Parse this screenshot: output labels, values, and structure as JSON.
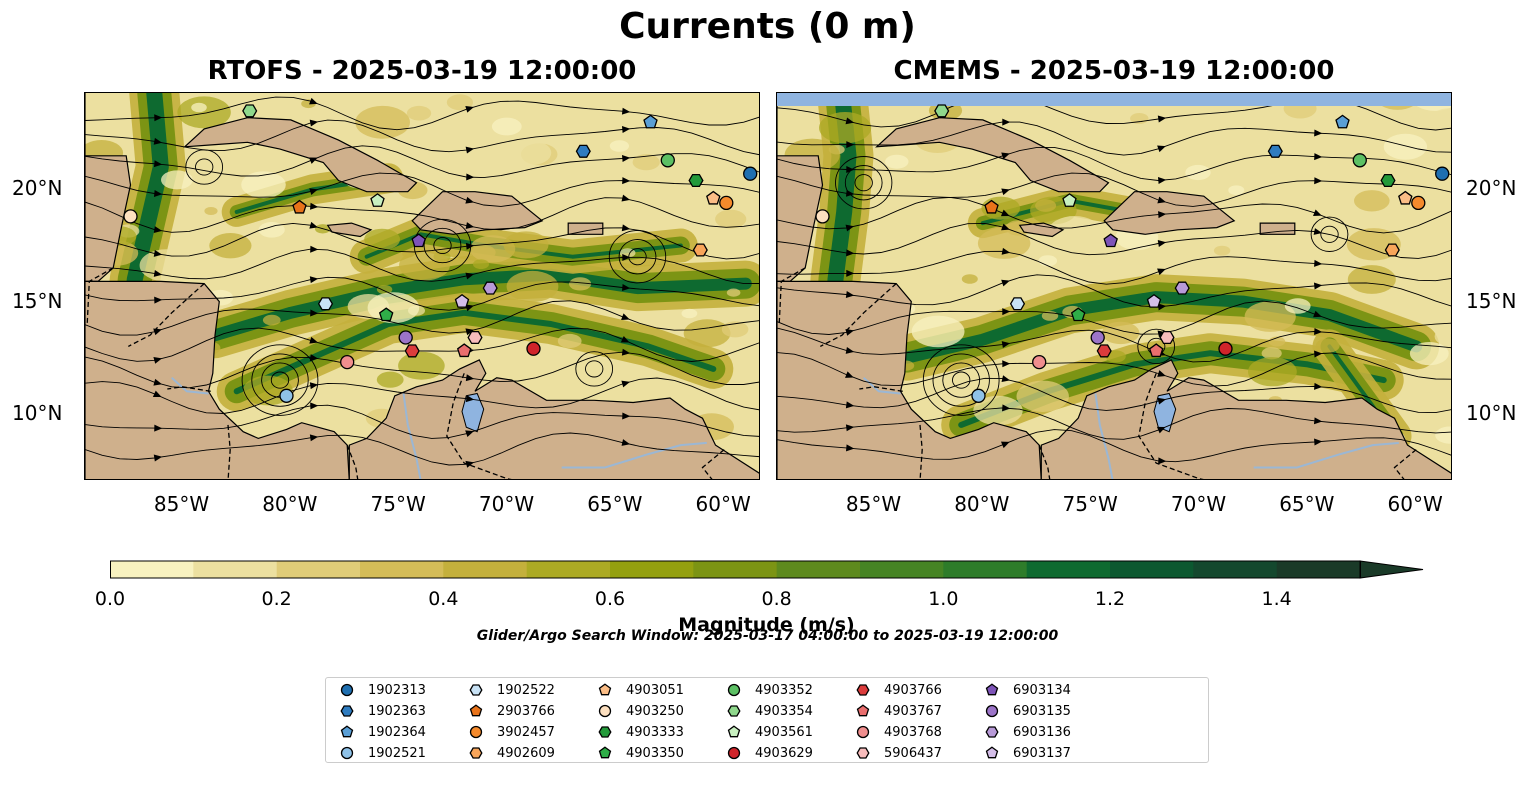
{
  "figure": {
    "suptitle": "Currents (0 m)",
    "left_title": "RTOFS - 2025-03-19 12:00:00",
    "right_title": "CMEMS - 2025-03-19 12:00:00",
    "search_window": "Glider/Argo Search Window: 2025-03-17 04:00:00 to 2025-03-19 12:00:00"
  },
  "axes": {
    "x_ticks": [
      "85°W",
      "80°W",
      "75°W",
      "70°W",
      "65°W",
      "60°W"
    ],
    "y_ticks": [
      "20°N",
      "15°N",
      "10°N"
    ],
    "x_values": [
      -85,
      -80,
      -75,
      -70,
      -65,
      -60
    ],
    "y_values": [
      20,
      15,
      10
    ],
    "lon_range": [
      -89.5,
      -58.3
    ],
    "lat_range": [
      7.0,
      24.3
    ]
  },
  "colorbar": {
    "label": "Magnitude (m/s)",
    "ticks": [
      "0.0",
      "0.2",
      "0.4",
      "0.6",
      "0.8",
      "1.0",
      "1.2",
      "1.4"
    ],
    "tick_values": [
      0.0,
      0.2,
      0.4,
      0.6,
      0.8,
      1.0,
      1.2,
      1.4
    ],
    "range": [
      0,
      1.5
    ],
    "extend": "max",
    "colors": [
      "#f8f2c0",
      "#ece0a0",
      "#e0cc78",
      "#d4bc58",
      "#c4b03c",
      "#acaa24",
      "#94a010",
      "#7c9414",
      "#5e8a1e",
      "#468424",
      "#2e7c2a",
      "#0e6a30",
      "#0c5830",
      "#14482e",
      "#1a3a28"
    ]
  },
  "colors": {
    "land": "#cfb08c",
    "lake": "#8fb4e0",
    "river": "#9bb7d4"
  },
  "legend": [
    {
      "label": "1902313",
      "shape": "circle",
      "color": "#1f6fb0"
    },
    {
      "label": "1902363",
      "shape": "hexagon",
      "color": "#2f7cc0"
    },
    {
      "label": "1902364",
      "shape": "pentagon",
      "color": "#5a9fd6"
    },
    {
      "label": "1902521",
      "shape": "circle",
      "color": "#8fc2e8"
    },
    {
      "label": "1902522",
      "shape": "hexagon",
      "color": "#c8e2f5"
    },
    {
      "label": "2903766",
      "shape": "pentagon",
      "color": "#e8731a"
    },
    {
      "label": "3902457",
      "shape": "circle",
      "color": "#f58a2c"
    },
    {
      "label": "4902609",
      "shape": "hexagon",
      "color": "#f8a55a"
    },
    {
      "label": "4903051",
      "shape": "pentagon",
      "color": "#fbbd86"
    },
    {
      "label": "4903250",
      "shape": "circle",
      "color": "#fde0c0"
    },
    {
      "label": "4903333",
      "shape": "hexagon",
      "color": "#239a3a"
    },
    {
      "label": "4903350",
      "shape": "pentagon",
      "color": "#2fae48"
    },
    {
      "label": "4903352",
      "shape": "circle",
      "color": "#5cc064"
    },
    {
      "label": "4903354",
      "shape": "hexagon",
      "color": "#8fd88c"
    },
    {
      "label": "4903561",
      "shape": "pentagon",
      "color": "#c8f0c0"
    },
    {
      "label": "4903629",
      "shape": "circle",
      "color": "#d0242a"
    },
    {
      "label": "4903766",
      "shape": "hexagon",
      "color": "#dc3c3c"
    },
    {
      "label": "4903767",
      "shape": "pentagon",
      "color": "#ea6e6e"
    },
    {
      "label": "4903768",
      "shape": "circle",
      "color": "#f08e8e"
    },
    {
      "label": "5906437",
      "shape": "hexagon",
      "color": "#f8bcbc"
    },
    {
      "label": "6903134",
      "shape": "pentagon",
      "color": "#7e54b8"
    },
    {
      "label": "6903135",
      "shape": "circle",
      "color": "#9c74c8"
    },
    {
      "label": "6903136",
      "shape": "hexagon",
      "color": "#b89ad8"
    },
    {
      "label": "6903137",
      "shape": "pentagon",
      "color": "#d4bee8"
    }
  ],
  "platforms": [
    {
      "id": "1902313",
      "lon": -58.8,
      "lat": 20.7
    },
    {
      "id": "1902363",
      "lon": -66.5,
      "lat": 21.7
    },
    {
      "id": "1902364",
      "lon": -63.4,
      "lat": 23.0
    },
    {
      "id": "1902521",
      "lon": -80.2,
      "lat": 10.8
    },
    {
      "id": "1902522",
      "lon": -78.4,
      "lat": 14.9
    },
    {
      "id": "2903766",
      "lon": -79.6,
      "lat": 19.2
    },
    {
      "id": "3902457",
      "lon": -59.9,
      "lat": 19.4
    },
    {
      "id": "4902609",
      "lon": -61.1,
      "lat": 17.3
    },
    {
      "id": "4903051",
      "lon": -60.5,
      "lat": 19.6
    },
    {
      "id": "4903250",
      "lon": -87.4,
      "lat": 18.8
    },
    {
      "id": "4903333",
      "lon": -61.3,
      "lat": 20.4
    },
    {
      "id": "4903350",
      "lon": -75.6,
      "lat": 14.4
    },
    {
      "id": "4903352",
      "lon": -62.6,
      "lat": 21.3
    },
    {
      "id": "4903354",
      "lon": -81.9,
      "lat": 23.5
    },
    {
      "id": "4903561",
      "lon": -76.0,
      "lat": 19.5
    },
    {
      "id": "4903629",
      "lon": -68.8,
      "lat": 12.9
    },
    {
      "id": "4903766",
      "lon": -74.4,
      "lat": 12.8
    },
    {
      "id": "4903767",
      "lon": -72.0,
      "lat": 12.8
    },
    {
      "id": "4903768",
      "lon": -77.4,
      "lat": 12.3
    },
    {
      "id": "5906437",
      "lon": -71.5,
      "lat": 13.4
    },
    {
      "id": "6903134",
      "lon": -74.1,
      "lat": 17.7
    },
    {
      "id": "6903135",
      "lon": -74.7,
      "lat": 13.4
    },
    {
      "id": "6903136",
      "lon": -70.8,
      "lat": 15.6
    },
    {
      "id": "6903137",
      "lon": -72.1,
      "lat": 15.0
    }
  ]
}
